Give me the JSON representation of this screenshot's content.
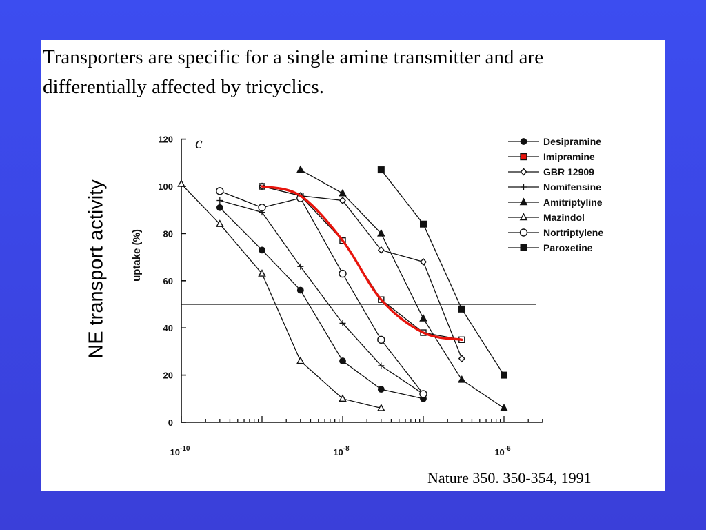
{
  "slide": {
    "title": "Transporters are specific for a single amine transmitter and are differentially affected by tricyclics.",
    "side_label": "NE transport activity",
    "citation": "Nature 350. 350-354, 1991"
  },
  "colors": {
    "background": "#3a46e6",
    "panel": "#ffffff",
    "highlight": "#e8140c",
    "ink": "#111111"
  },
  "chart_data": {
    "type": "line",
    "panel_letter": "c",
    "ylabel": "uptake (%)",
    "xscale": "log",
    "xlim": [
      1e-10,
      3e-06
    ],
    "ylim": [
      0,
      120
    ],
    "yticks": [
      0,
      20,
      40,
      60,
      80,
      100,
      120
    ],
    "xtick_labels": [
      {
        "value": 1e-10,
        "base": "10",
        "exp": "-10"
      },
      {
        "value": 1e-08,
        "base": "10",
        "exp": "-8"
      },
      {
        "value": 1e-06,
        "base": "10",
        "exp": "-6"
      }
    ],
    "reference_line_y": 50,
    "legend_position": "top-right",
    "series": [
      {
        "name": "Desipramine",
        "marker": "filled-circle",
        "x": [
          3e-10,
          1e-09,
          3e-09,
          1e-08,
          3e-08,
          1e-07
        ],
        "y": [
          91,
          73,
          56,
          26,
          14,
          10
        ]
      },
      {
        "name": "Imipramine",
        "marker": "open-square",
        "highlight": true,
        "x": [
          1e-09,
          3e-09,
          1e-08,
          3e-08,
          1e-07,
          3e-07
        ],
        "y": [
          100,
          96,
          77,
          52,
          38,
          35
        ]
      },
      {
        "name": "GBR 12909",
        "marker": "open-diamond",
        "x": [
          1e-09,
          3e-09,
          1e-08,
          3e-08,
          1e-07,
          3e-07
        ],
        "y": [
          100,
          96,
          94,
          73,
          68,
          27
        ]
      },
      {
        "name": "Nomifensine",
        "marker": "plus",
        "x": [
          3e-10,
          1e-09,
          3e-09,
          1e-08,
          3e-08,
          1e-07
        ],
        "y": [
          94,
          89,
          66,
          42,
          24,
          12
        ]
      },
      {
        "name": "Amitriptyline",
        "marker": "filled-triangle",
        "x": [
          3e-09,
          1e-08,
          3e-08,
          1e-07,
          3e-07,
          1e-06
        ],
        "y": [
          107,
          97,
          80,
          44,
          18,
          6
        ]
      },
      {
        "name": "Mazindol",
        "marker": "open-triangle",
        "x": [
          1e-10,
          3e-10,
          1e-09,
          3e-09,
          1e-08,
          3e-08
        ],
        "y": [
          101,
          84,
          63,
          26,
          10,
          6
        ]
      },
      {
        "name": "Nortriptylene",
        "marker": "open-circle",
        "x": [
          3e-10,
          1e-09,
          3e-09,
          1e-08,
          3e-08,
          1e-07
        ],
        "y": [
          98,
          91,
          95,
          63,
          35,
          12
        ]
      },
      {
        "name": "Paroxetine",
        "marker": "filled-square",
        "x": [
          3e-08,
          1e-07,
          3e-07,
          1e-06
        ],
        "y": [
          107,
          84,
          48,
          20
        ]
      }
    ]
  }
}
